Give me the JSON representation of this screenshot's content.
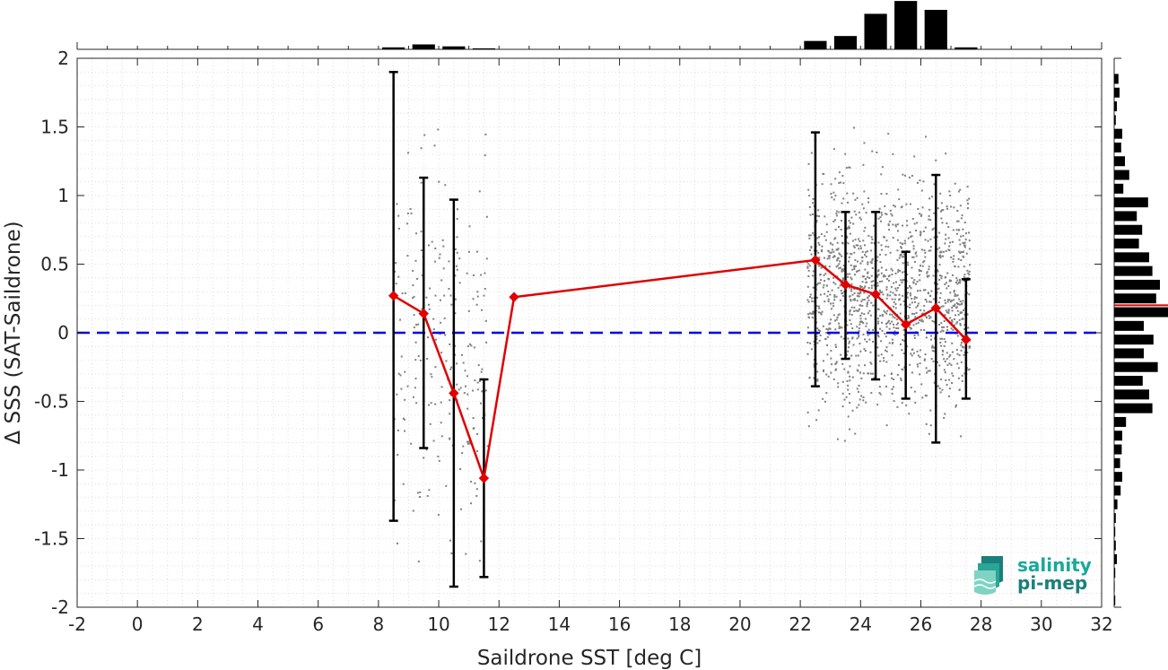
{
  "chart_data": {
    "type": "scatter",
    "xlabel": "Saildrone SST [deg C]",
    "ylabel": "Δ SSS (SAT-Saildrone)",
    "xlim": [
      -2,
      32
    ],
    "ylim": [
      -2,
      2
    ],
    "xticks": [
      -2,
      0,
      2,
      4,
      6,
      8,
      10,
      12,
      14,
      16,
      18,
      20,
      22,
      24,
      26,
      28,
      30,
      32
    ],
    "yticks": [
      -2,
      -1.5,
      -1,
      -0.5,
      0,
      0.5,
      1,
      1.5,
      2
    ],
    "grid": "minor dotted",
    "zero_line": {
      "y": 0,
      "color": "#0000ee",
      "style": "dashed"
    },
    "binned_mean": {
      "color": "#e00000",
      "marker": "diamond",
      "x": [
        8.5,
        9.5,
        10.5,
        11.5,
        12.5,
        22.5,
        23.5,
        24.5,
        25.5,
        26.5,
        27.5
      ],
      "y": [
        0.27,
        0.14,
        -0.44,
        -1.06,
        0.26,
        0.53,
        0.35,
        0.28,
        0.06,
        0.18,
        -0.05
      ],
      "err_low": [
        -1.37,
        -0.84,
        -1.85,
        -1.78,
        null,
        -0.39,
        -0.19,
        -0.34,
        -0.48,
        -0.8,
        -0.48
      ],
      "err_high": [
        1.9,
        1.13,
        0.97,
        -0.34,
        null,
        1.46,
        0.88,
        0.88,
        0.59,
        1.15,
        0.39
      ]
    },
    "scatter_clusters": [
      {
        "x_range": [
          8.5,
          11.6
        ],
        "y_center": -0.1,
        "y_spread": 1.4,
        "count": 230
      },
      {
        "x_range": [
          22.2,
          27.6
        ],
        "y_center": 0.3,
        "y_spread": 0.85,
        "count": 1400
      }
    ],
    "scatter_color": "#808080",
    "top_histogram": {
      "bins": [
        8.5,
        9.5,
        10.5,
        11.5,
        22.5,
        23.5,
        24.5,
        25.5,
        26.5,
        27.5
      ],
      "counts": [
        0.04,
        0.1,
        0.06,
        0.02,
        0.17,
        0.27,
        0.72,
        0.98,
        0.8,
        0.04
      ]
    },
    "right_histogram": {
      "bins": [
        1.85,
        1.75,
        1.65,
        1.55,
        1.45,
        1.35,
        1.25,
        1.15,
        1.05,
        0.95,
        0.85,
        0.75,
        0.65,
        0.55,
        0.45,
        0.35,
        0.25,
        0.15,
        0.05,
        -0.05,
        -0.15,
        -0.25,
        -0.35,
        -0.45,
        -0.55,
        -0.65,
        -0.75,
        -0.85,
        -0.95,
        -1.05,
        -1.15,
        -1.25,
        -1.35,
        -1.45,
        -1.55,
        -1.65,
        -1.75,
        -1.85,
        -1.95
      ],
      "counts": [
        0.08,
        0.1,
        0.05,
        0.03,
        0.15,
        0.13,
        0.2,
        0.28,
        0.17,
        0.63,
        0.42,
        0.52,
        0.46,
        0.65,
        0.71,
        0.85,
        0.78,
        1.0,
        0.55,
        0.73,
        0.55,
        0.81,
        0.53,
        0.65,
        0.71,
        0.22,
        0.15,
        0.14,
        0.11,
        0.15,
        0.12,
        0.06,
        0.03,
        0.02,
        0.03,
        0.05,
        0.02,
        0.01,
        0.02
      ],
      "mean_marker": {
        "y": 0.2,
        "color": "#e00000"
      }
    }
  },
  "logo": {
    "line1": "salinity",
    "line2": "pi-mep",
    "color1": "#1aa89a",
    "color2": "#1b7f7a"
  }
}
